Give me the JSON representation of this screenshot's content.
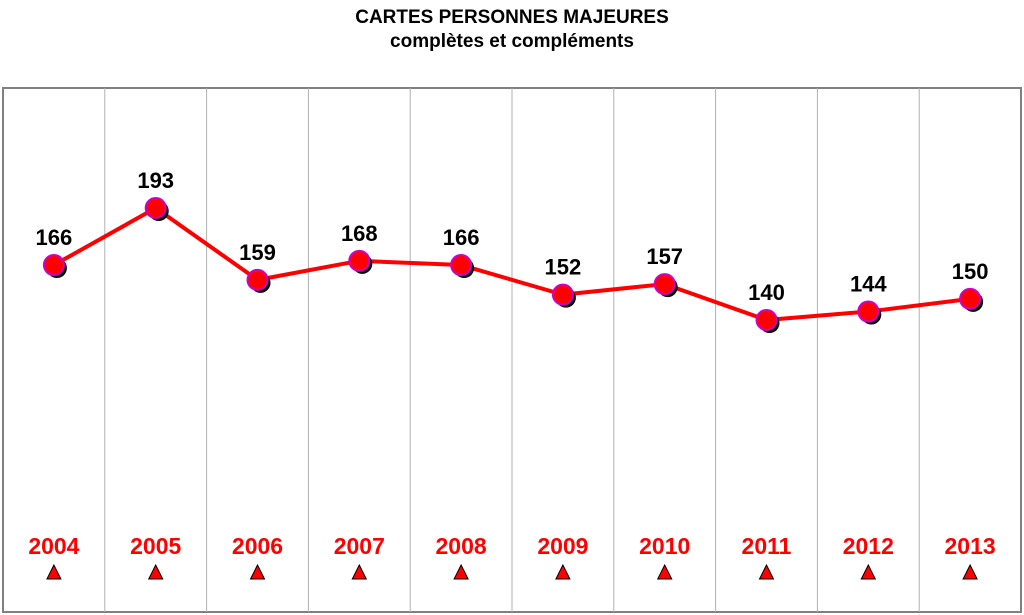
{
  "chart_data": {
    "type": "line",
    "title": "CARTES PERSONNES MAJEURES",
    "subtitle": "complètes et compléments",
    "categories": [
      "2004",
      "2005",
      "2006",
      "2007",
      "2008",
      "2009",
      "2010",
      "2011",
      "2012",
      "2013"
    ],
    "values": [
      166,
      193,
      159,
      168,
      166,
      152,
      157,
      140,
      144,
      150
    ],
    "ylim": [
      0,
      300
    ],
    "grid": "vertical",
    "colors": {
      "line": "#ff0000",
      "marker_fill": "#ff0000",
      "marker_outline": "#cc00cc",
      "marker_shadow": "#000000",
      "year_label": "#ff0000",
      "triangle_fill": "#ff0000",
      "triangle_outline": "#000000",
      "frame": "#808080",
      "gridline": "#b0b0b0"
    },
    "category_marker_icon": "triangle-up-icon"
  }
}
